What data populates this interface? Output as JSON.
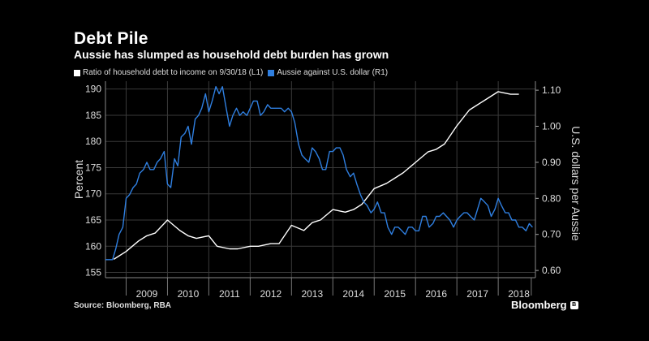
{
  "header": {
    "title": "Debt Pile",
    "subtitle": "Aussie has slumped as household debt burden has grown"
  },
  "legend": {
    "items": [
      {
        "label": "Ratio of household debt to income on 9/30/18 (L1)",
        "color": "#ffffff"
      },
      {
        "label": "Aussie against U.S. dollar (R1)",
        "color": "#2f7fe0"
      }
    ]
  },
  "footer": {
    "source": "Source: Bloomberg, RBA",
    "brand": "Bloomberg",
    "brand_badge": "B"
  },
  "chart_data": {
    "type": "line",
    "title": "Debt Pile",
    "subtitle": "Aussie has slumped as household debt burden has grown",
    "ylabel_left": "Percent",
    "ylabel_right": "U.S. dollars per Aussie",
    "ylim_left": [
      154,
      191.5
    ],
    "ylim_right": [
      0.58,
      1.125
    ],
    "yticks_left": [
      155,
      160,
      165,
      170,
      175,
      180,
      185,
      190
    ],
    "yticks_right": [
      "0.60",
      "0.70",
      "0.80",
      "0.90",
      "1.00",
      "1.10"
    ],
    "xlim": [
      2008.5,
      2018.9
    ],
    "xticks": [
      "2009",
      "2010",
      "2011",
      "2012",
      "2013",
      "2014",
      "2015",
      "2016",
      "2017",
      "2018"
    ],
    "grid": true,
    "series": [
      {
        "name": "Ratio of household debt to income on 9/30/18 (L1)",
        "axis": "left",
        "color": "#ffffff",
        "x": [
          2008.7,
          2009.0,
          2009.3,
          2009.5,
          2009.7,
          2010.0,
          2010.3,
          2010.5,
          2010.7,
          2011.0,
          2011.2,
          2011.5,
          2011.7,
          2012.0,
          2012.2,
          2012.5,
          2012.7,
          2013.0,
          2013.3,
          2013.5,
          2013.7,
          2014.0,
          2014.3,
          2014.5,
          2014.7,
          2015.0,
          2015.3,
          2015.5,
          2015.7,
          2016.0,
          2016.3,
          2016.5,
          2016.7,
          2017.0,
          2017.3,
          2017.5,
          2017.7,
          2018.0,
          2018.3,
          2018.5
        ],
        "values": [
          157.5,
          159,
          161,
          162,
          162.5,
          165,
          163,
          162,
          161.5,
          162,
          160,
          159.5,
          159.5,
          160,
          160,
          160.5,
          160.5,
          164,
          163,
          164.5,
          165,
          167,
          166.5,
          167,
          168,
          171,
          172,
          173,
          174,
          176,
          178,
          178.5,
          179.5,
          183,
          186,
          187,
          188,
          189.5,
          189,
          189
        ]
      },
      {
        "name": "Aussie against U.S. dollar (R1)",
        "axis": "right",
        "color": "#2f7fe0",
        "x": [
          2008.5,
          2008.58,
          2008.67,
          2008.75,
          2008.83,
          2008.92,
          2009.0,
          2009.08,
          2009.17,
          2009.25,
          2009.33,
          2009.42,
          2009.5,
          2009.58,
          2009.67,
          2009.75,
          2009.83,
          2009.92,
          2010.0,
          2010.08,
          2010.17,
          2010.25,
          2010.33,
          2010.42,
          2010.5,
          2010.58,
          2010.67,
          2010.75,
          2010.83,
          2010.92,
          2011.0,
          2011.08,
          2011.17,
          2011.25,
          2011.33,
          2011.42,
          2011.5,
          2011.58,
          2011.67,
          2011.75,
          2011.83,
          2011.92,
          2012.0,
          2012.08,
          2012.17,
          2012.25,
          2012.33,
          2012.42,
          2012.5,
          2012.58,
          2012.67,
          2012.75,
          2012.83,
          2012.92,
          2013.0,
          2013.08,
          2013.17,
          2013.25,
          2013.33,
          2013.42,
          2013.5,
          2013.58,
          2013.67,
          2013.75,
          2013.83,
          2013.92,
          2014.0,
          2014.08,
          2014.17,
          2014.25,
          2014.33,
          2014.42,
          2014.5,
          2014.58,
          2014.67,
          2014.75,
          2014.83,
          2014.92,
          2015.0,
          2015.08,
          2015.17,
          2015.25,
          2015.33,
          2015.42,
          2015.5,
          2015.58,
          2015.67,
          2015.75,
          2015.83,
          2015.92,
          2016.0,
          2016.08,
          2016.17,
          2016.25,
          2016.33,
          2016.42,
          2016.5,
          2016.58,
          2016.67,
          2016.75,
          2016.83,
          2016.92,
          2017.0,
          2017.08,
          2017.17,
          2017.25,
          2017.33,
          2017.42,
          2017.5,
          2017.58,
          2017.67,
          2017.75,
          2017.83,
          2017.92,
          2018.0,
          2018.08,
          2018.17,
          2018.25,
          2018.33,
          2018.42,
          2018.5,
          2018.58,
          2018.67,
          2018.75,
          2018.83
        ],
        "values": [
          0.63,
          0.63,
          0.63,
          0.66,
          0.7,
          0.72,
          0.8,
          0.81,
          0.83,
          0.84,
          0.87,
          0.88,
          0.9,
          0.88,
          0.88,
          0.9,
          0.91,
          0.93,
          0.84,
          0.83,
          0.91,
          0.89,
          0.97,
          0.98,
          1.0,
          0.95,
          1.02,
          1.03,
          1.05,
          1.09,
          1.04,
          1.07,
          1.11,
          1.09,
          1.11,
          1.05,
          1.0,
          1.03,
          1.05,
          1.03,
          1.04,
          1.03,
          1.05,
          1.07,
          1.07,
          1.03,
          1.04,
          1.06,
          1.05,
          1.05,
          1.05,
          1.05,
          1.04,
          1.05,
          1.04,
          1.01,
          0.95,
          0.92,
          0.91,
          0.9,
          0.94,
          0.93,
          0.91,
          0.88,
          0.88,
          0.93,
          0.93,
          0.94,
          0.94,
          0.92,
          0.88,
          0.86,
          0.87,
          0.84,
          0.81,
          0.79,
          0.78,
          0.76,
          0.77,
          0.79,
          0.76,
          0.76,
          0.72,
          0.7,
          0.72,
          0.72,
          0.71,
          0.7,
          0.72,
          0.72,
          0.71,
          0.71,
          0.75,
          0.75,
          0.72,
          0.73,
          0.75,
          0.75,
          0.76,
          0.75,
          0.74,
          0.72,
          0.74,
          0.75,
          0.76,
          0.76,
          0.75,
          0.74,
          0.77,
          0.8,
          0.79,
          0.78,
          0.75,
          0.77,
          0.8,
          0.78,
          0.76,
          0.76,
          0.74,
          0.74,
          0.72,
          0.72,
          0.71,
          0.73,
          0.72
        ]
      }
    ]
  }
}
